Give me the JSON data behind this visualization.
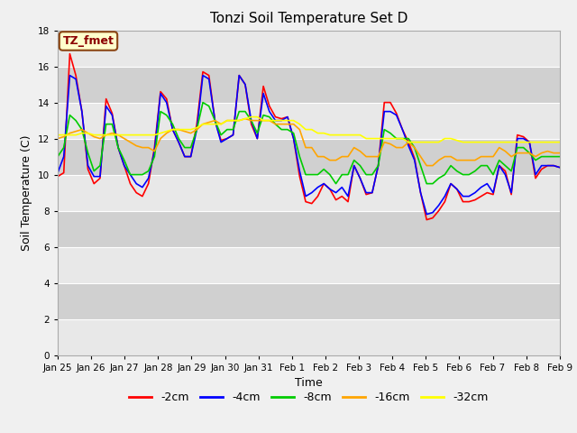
{
  "title": "Tonzi Soil Temperature Set D",
  "xlabel": "Time",
  "ylabel": "Soil Temperature (C)",
  "ylim": [
    0,
    18
  ],
  "yticks": [
    0,
    2,
    4,
    6,
    8,
    10,
    12,
    14,
    16,
    18
  ],
  "x_labels": [
    "Jan 25",
    "Jan 26",
    "Jan 27",
    "Jan 28",
    "Jan 29",
    "Jan 30",
    "Jan 31",
    "Feb 1",
    "Feb 2",
    "Feb 3",
    "Feb 4",
    "Feb 5",
    "Feb 6",
    "Feb 7",
    "Feb 8",
    "Feb 9"
  ],
  "annotation_text": "TZ_fmet",
  "annotation_color": "#8B0000",
  "annotation_bg": "#FFFFCC",
  "annotation_border": "#8B4513",
  "series_order": [
    "-2cm",
    "-4cm",
    "-8cm",
    "-16cm",
    "-32cm"
  ],
  "series": {
    "-2cm": {
      "color": "#FF0000",
      "values": [
        9.9,
        10.1,
        16.7,
        15.5,
        13.5,
        10.3,
        9.5,
        9.8,
        14.2,
        13.4,
        11.5,
        10.5,
        9.5,
        9.0,
        8.8,
        9.5,
        11.5,
        14.6,
        14.2,
        12.5,
        11.8,
        11.0,
        11.0,
        12.8,
        15.7,
        15.5,
        13.0,
        11.9,
        12.0,
        12.2,
        15.5,
        15.0,
        12.8,
        12.0,
        14.9,
        13.8,
        13.2,
        13.1,
        13.2,
        12.0,
        9.9,
        8.5,
        8.4,
        8.8,
        9.5,
        9.2,
        8.6,
        8.8,
        8.5,
        10.5,
        9.8,
        8.9,
        9.0,
        10.5,
        14.0,
        14.0,
        13.4,
        12.5,
        11.8,
        10.9,
        9.0,
        7.5,
        7.6,
        8.0,
        8.5,
        9.5,
        9.2,
        8.5,
        8.5,
        8.6,
        8.8,
        9.0,
        8.9,
        10.5,
        10.2,
        8.9,
        12.2,
        12.1,
        11.8,
        9.8,
        10.3,
        10.5,
        10.5,
        10.4
      ]
    },
    "-4cm": {
      "color": "#0000FF",
      "values": [
        10.1,
        11.0,
        15.5,
        15.3,
        13.5,
        10.5,
        9.9,
        9.9,
        13.8,
        13.3,
        11.5,
        10.5,
        10.0,
        9.5,
        9.3,
        9.8,
        11.3,
        14.5,
        14.0,
        12.5,
        11.8,
        11.0,
        11.0,
        12.5,
        15.5,
        15.3,
        13.0,
        11.8,
        12.0,
        12.2,
        15.5,
        15.0,
        13.0,
        12.0,
        14.5,
        13.5,
        13.0,
        13.0,
        13.2,
        12.0,
        10.2,
        8.8,
        9.0,
        9.3,
        9.5,
        9.2,
        9.0,
        9.3,
        8.8,
        10.5,
        9.8,
        9.0,
        9.0,
        10.5,
        13.5,
        13.5,
        13.3,
        12.5,
        11.6,
        10.8,
        9.0,
        7.8,
        7.9,
        8.3,
        8.8,
        9.5,
        9.2,
        8.8,
        8.8,
        9.0,
        9.3,
        9.5,
        9.0,
        10.5,
        10.0,
        9.0,
        12.0,
        12.0,
        11.8,
        10.0,
        10.5,
        10.5,
        10.5,
        10.4
      ]
    },
    "-8cm": {
      "color": "#00CC00",
      "values": [
        11.0,
        11.5,
        13.3,
        13.0,
        12.5,
        11.2,
        10.2,
        10.5,
        12.8,
        12.8,
        11.5,
        10.8,
        10.0,
        10.0,
        10.0,
        10.2,
        11.0,
        13.5,
        13.3,
        12.8,
        12.0,
        11.5,
        11.5,
        12.5,
        14.0,
        13.8,
        13.0,
        12.2,
        12.5,
        12.5,
        13.5,
        13.5,
        13.0,
        12.3,
        13.3,
        13.2,
        12.8,
        12.5,
        12.5,
        12.3,
        11.0,
        10.0,
        10.0,
        10.0,
        10.3,
        10.0,
        9.5,
        10.0,
        10.0,
        10.8,
        10.5,
        10.0,
        10.0,
        10.5,
        12.5,
        12.3,
        12.0,
        12.0,
        12.0,
        11.5,
        10.5,
        9.5,
        9.5,
        9.8,
        10.0,
        10.5,
        10.2,
        10.0,
        10.0,
        10.2,
        10.5,
        10.5,
        10.0,
        10.8,
        10.5,
        10.2,
        11.5,
        11.5,
        11.2,
        10.8,
        11.0,
        11.0,
        11.0,
        11.0
      ]
    },
    "-16cm": {
      "color": "#FFA500",
      "values": [
        12.0,
        12.1,
        12.3,
        12.4,
        12.5,
        12.3,
        12.1,
        12.0,
        12.2,
        12.3,
        12.2,
        12.0,
        11.8,
        11.6,
        11.5,
        11.5,
        11.3,
        12.0,
        12.3,
        12.5,
        12.5,
        12.4,
        12.3,
        12.5,
        12.8,
        12.9,
        13.0,
        12.8,
        13.0,
        13.0,
        13.0,
        13.1,
        13.0,
        13.0,
        13.0,
        13.0,
        12.8,
        12.8,
        12.8,
        12.8,
        12.5,
        11.5,
        11.5,
        11.0,
        11.0,
        10.8,
        10.8,
        11.0,
        11.0,
        11.5,
        11.3,
        11.0,
        11.0,
        11.0,
        11.8,
        11.7,
        11.5,
        11.5,
        11.8,
        11.5,
        11.0,
        10.5,
        10.5,
        10.8,
        11.0,
        11.0,
        10.8,
        10.8,
        10.8,
        10.8,
        11.0,
        11.0,
        11.0,
        11.5,
        11.3,
        11.0,
        11.2,
        11.2,
        11.2,
        11.0,
        11.2,
        11.3,
        11.2,
        11.2
      ]
    },
    "-32cm": {
      "color": "#FFFF00",
      "values": [
        12.2,
        12.2,
        12.2,
        12.2,
        12.3,
        12.3,
        12.2,
        12.2,
        12.2,
        12.2,
        12.2,
        12.2,
        12.2,
        12.2,
        12.2,
        12.2,
        12.2,
        12.3,
        12.4,
        12.5,
        12.5,
        12.5,
        12.5,
        12.6,
        12.8,
        12.8,
        12.8,
        12.8,
        13.0,
        13.0,
        13.0,
        13.1,
        13.2,
        13.2,
        13.0,
        13.0,
        13.0,
        13.0,
        13.0,
        13.0,
        12.8,
        12.5,
        12.5,
        12.3,
        12.3,
        12.2,
        12.2,
        12.2,
        12.2,
        12.2,
        12.2,
        12.0,
        12.0,
        12.0,
        12.0,
        12.0,
        12.0,
        12.0,
        11.8,
        11.8,
        11.8,
        11.8,
        11.8,
        11.8,
        12.0,
        12.0,
        11.9,
        11.8,
        11.8,
        11.8,
        11.8,
        11.8,
        11.8,
        11.8,
        11.8,
        11.8,
        11.8,
        11.8,
        11.8,
        11.8,
        11.8,
        11.8,
        11.8,
        11.8
      ]
    }
  },
  "n_points": 84,
  "bg_color": "#F0F0F0",
  "plot_bg_light": "#E8E8E8",
  "plot_bg_dark": "#D0D0D0",
  "grid_color": "#FFFFFF",
  "linewidth": 1.2
}
